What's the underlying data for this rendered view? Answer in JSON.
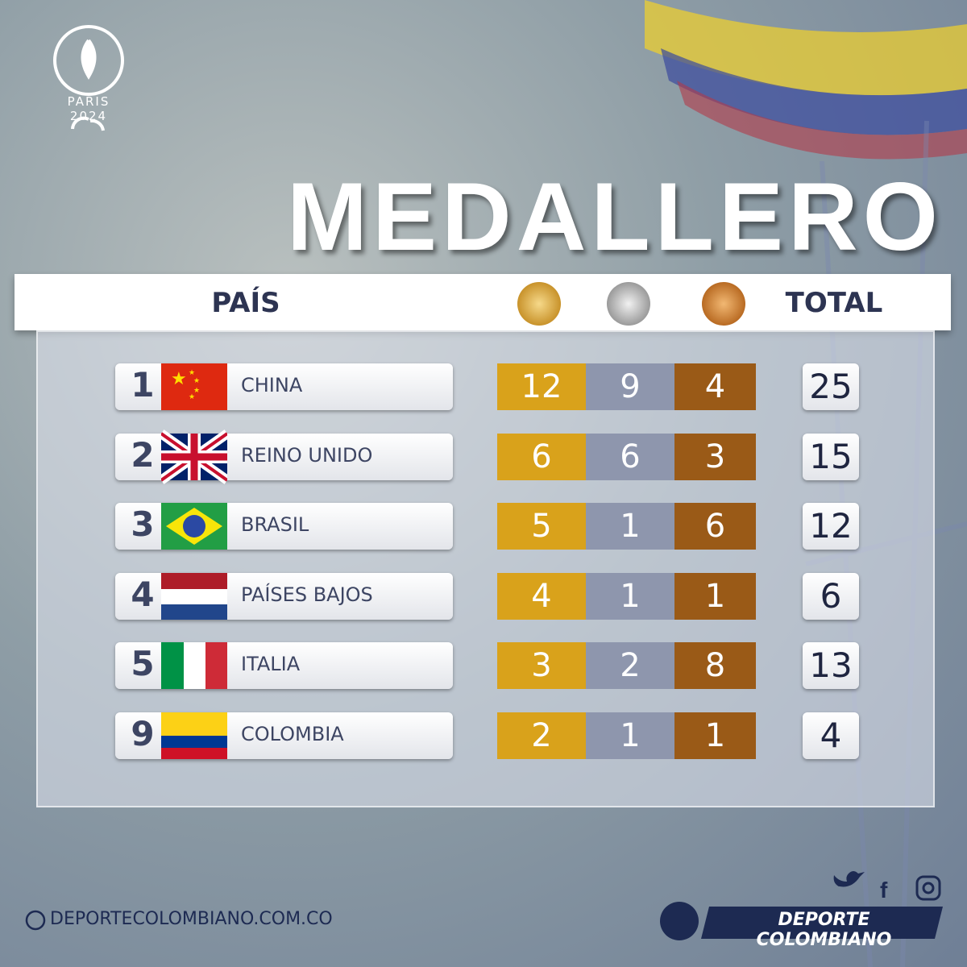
{
  "header": {
    "logo_text": "PARIS 2024",
    "title": "MEDALLERO"
  },
  "table": {
    "headers": {
      "country": "PAÍS",
      "total": "TOTAL"
    },
    "rows": [
      {
        "rank": 1,
        "country": "CHINA",
        "gold": 12,
        "silver": 9,
        "bronze": 4,
        "total": 25
      },
      {
        "rank": 2,
        "country": "REINO UNIDO",
        "gold": 6,
        "silver": 6,
        "bronze": 3,
        "total": 15
      },
      {
        "rank": 3,
        "country": "BRASIL",
        "gold": 5,
        "silver": 1,
        "bronze": 6,
        "total": 12
      },
      {
        "rank": 4,
        "country": "PAÍSES BAJOS",
        "gold": 4,
        "silver": 1,
        "bronze": 1,
        "total": 6
      },
      {
        "rank": 5,
        "country": "ITALIA",
        "gold": 3,
        "silver": 2,
        "bronze": 8,
        "total": 13
      },
      {
        "rank": 9,
        "country": "COLOMBIA",
        "gold": 2,
        "silver": 1,
        "bronze": 1,
        "total": 4
      }
    ]
  },
  "footer": {
    "website": "DEPORTECOLOMBIANO.COM.CO",
    "brand": "DEPORTE COLOMBIANO"
  }
}
